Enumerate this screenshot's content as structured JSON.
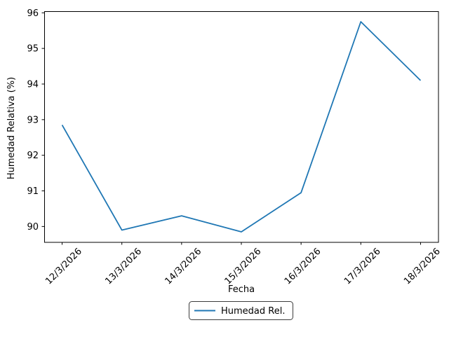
{
  "chart_data": {
    "type": "line",
    "x": [
      "12/3/2026",
      "13/3/2026",
      "14/3/2026",
      "15/3/2026",
      "16/3/2026",
      "17/3/2026",
      "18/3/2026"
    ],
    "series": [
      {
        "name": "Humedad Rel.",
        "values": [
          92.85,
          89.9,
          90.3,
          89.85,
          90.95,
          95.75,
          94.1
        ],
        "color": "#1f77b4"
      }
    ],
    "title": "",
    "xlabel": "Fecha",
    "ylabel": "Humedad Relativa (%)",
    "yticks": [
      90,
      91,
      92,
      93,
      94,
      95,
      96
    ],
    "ylim": [
      89.555,
      96.045
    ],
    "xlim": [
      -0.3,
      6.3
    ],
    "grid": false,
    "legend_position": "lower center, below x-axis label",
    "background_color": "#ffffff",
    "text_color": "#000000",
    "xtick_rotation_deg": 45
  }
}
